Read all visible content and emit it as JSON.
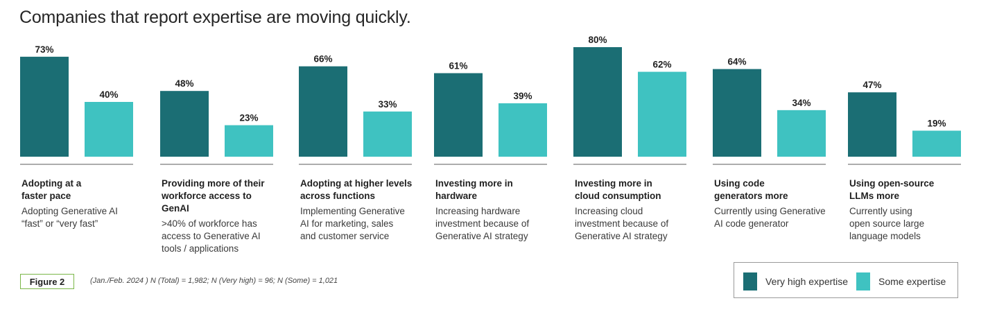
{
  "title": "Companies that report expertise are moving quickly.",
  "colors": {
    "very_high": "#1b6e74",
    "some": "#3fc2c1",
    "baseline": "#7a7a7a"
  },
  "chart_data": {
    "type": "bar",
    "title": "Companies that report expertise are moving quickly.",
    "ylim": [
      0,
      100
    ],
    "grid": false,
    "legend_placement": "bottom-right",
    "categories": [
      "Adopting at a faster pace",
      "Providing more of their workforce access to GenAI",
      "Adopting at higher levels across functions",
      "Investing more in hardware",
      "Investing more in cloud consumption",
      "Using code generators more",
      "Using open-source LLMs more"
    ],
    "series": [
      {
        "name": "Very high expertise",
        "values": [
          73,
          48,
          66,
          61,
          80,
          64,
          47
        ]
      },
      {
        "name": "Some expertise",
        "values": [
          40,
          23,
          33,
          39,
          62,
          34,
          19
        ]
      }
    ],
    "value_labels": [
      [
        "73%",
        "40%"
      ],
      [
        "48%",
        "23%"
      ],
      [
        "66%",
        "33%"
      ],
      [
        "61%",
        "39%"
      ],
      [
        "80%",
        "62%"
      ],
      [
        "64%",
        "34%"
      ],
      [
        "47%",
        "19%"
      ]
    ]
  },
  "panels": [
    {
      "heading": "Adopting at a\nfaster pace",
      "description": "Adopting Generative AI\n“fast” or “very fast”"
    },
    {
      "heading": "Providing more of their\nworkforce access to\nGenAI",
      "description": ">40% of workforce has\naccess to Generative AI\ntools / applications"
    },
    {
      "heading": "Adopting at higher levels\nacross functions",
      "description": "Implementing Generative\nAI for marketing, sales\nand customer service"
    },
    {
      "heading": "Investing more in\nhardware",
      "description": "Increasing hardware\ninvestment because of\nGenerative AI strategy"
    },
    {
      "heading": "Investing more in\ncloud consumption",
      "description": "Increasing cloud\ninvestment because of\nGenerative AI strategy"
    },
    {
      "heading": "Using code\ngenerators more",
      "description": "Currently using Generative\nAI code generator"
    },
    {
      "heading": "Using open-source\nLLMs more",
      "description": "Currently using\nopen source large\nlanguage models"
    }
  ],
  "figure_label": "Figure 2",
  "footnote": "(Jan./Feb. 2024 ) N (Total) = 1,982; N (Very high) = 96;  N (Some) = 1,021",
  "legend": {
    "very_high_label": "Very high expertise",
    "some_label": "Some expertise"
  }
}
